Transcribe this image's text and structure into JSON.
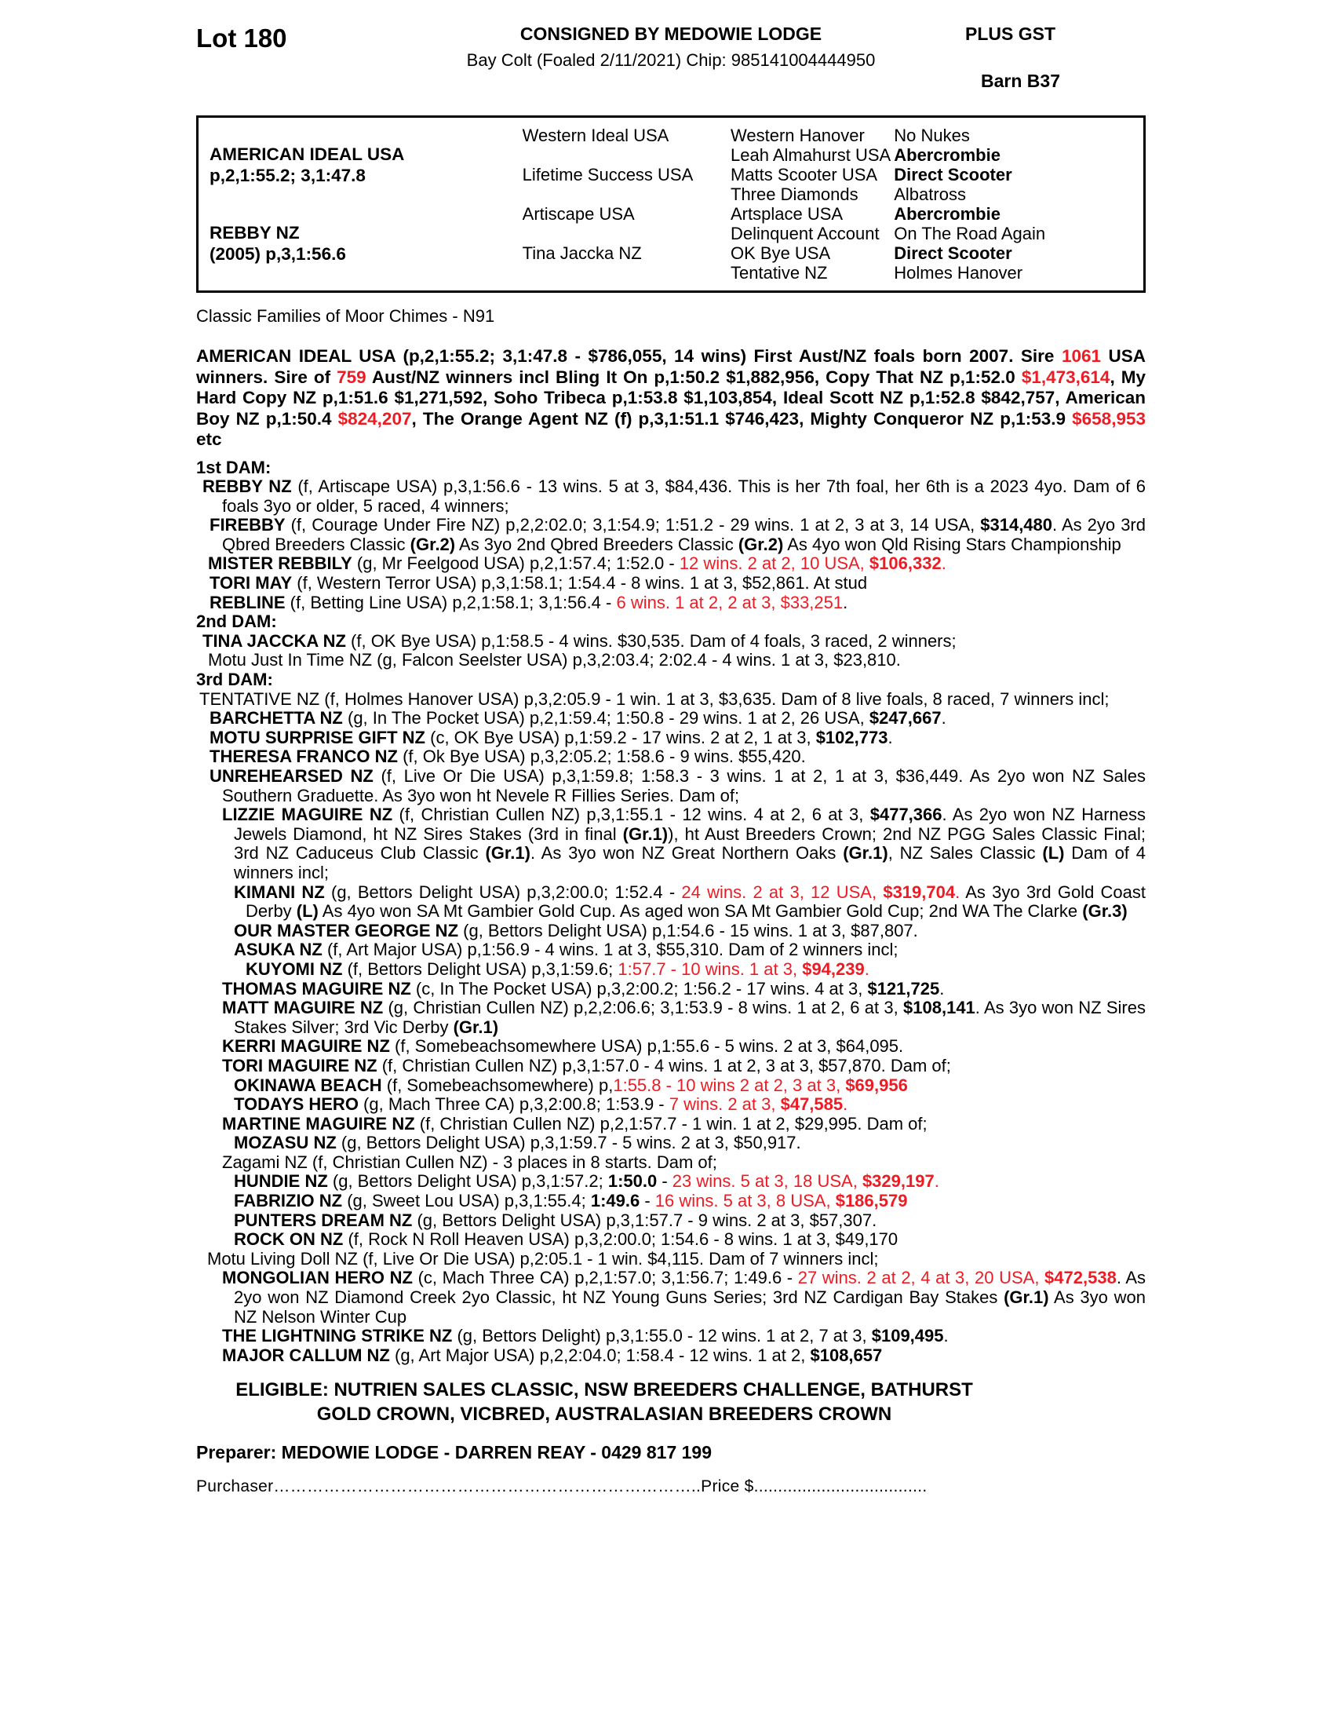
{
  "page": {
    "background": "#ffffff",
    "red_color": "#ed1c24"
  },
  "header": {
    "lot": "Lot 180",
    "consigned": "CONSIGNED BY MEDOWIE LODGE",
    "foaling": "Bay Colt (Foaled 2/11/2021) Chip: 985141004444950",
    "plus_gst": "PLUS GST",
    "barn": "Barn B37"
  },
  "pedigree": {
    "sire": {
      "name": "AMERICAN IDEAL USA",
      "record": "p,2,1:55.2; 3,1:47.8"
    },
    "dam": {
      "name": "REBBY NZ",
      "record": "(2005) p,3,1:56.6"
    },
    "g2": [
      "Western Ideal USA",
      "Lifetime Success USA",
      "Artiscape USA",
      "Tina Jaccka NZ"
    ],
    "g3": [
      {
        "name": "Western Hanover",
        "parent": "No Nukes",
        "parent_bold": false
      },
      {
        "name": "Leah Almahurst USA",
        "parent": "Abercrombie",
        "parent_bold": true
      },
      {
        "name": "Matts Scooter USA",
        "parent": "Direct Scooter",
        "parent_bold": true
      },
      {
        "name": "Three Diamonds",
        "parent": "Albatross",
        "parent_bold": false
      },
      {
        "name": "Artsplace USA",
        "parent": "Abercrombie",
        "parent_bold": true
      },
      {
        "name": "Delinquent Account",
        "parent": "On The Road Again",
        "parent_bold": false
      },
      {
        "name": "OK Bye USA",
        "parent": "Direct Scooter",
        "parent_bold": true
      },
      {
        "name": "Tentative NZ",
        "parent": "Holmes Hanover",
        "parent_bold": false
      }
    ]
  },
  "family_line": "Classic Families of Moor Chimes - N91",
  "sire_paragraph": [
    [
      "AMERICAN IDEAL USA (p,2,1:55.2; 3,1:47.8 - $786,055, 14 wins) First Aust/NZ foals born 2007. Sire ",
      "b"
    ],
    [
      "1061",
      "br"
    ],
    [
      " USA winners. Sire of ",
      "b"
    ],
    [
      "759",
      "br"
    ],
    [
      " Aust/NZ winners incl Bling It On p,1:50.2 $1,882,956, Copy That NZ p,1:52.0 ",
      "b"
    ],
    [
      "$1,473,614",
      "br"
    ],
    [
      ", My Hard Copy NZ p,1:51.6 $1,271,592, Soho Tribeca p,1:53.8 $1,103,854, Ideal Scott NZ p,1:52.8 $842,757, American Boy NZ p,1:50.4 ",
      "b"
    ],
    [
      "$824,207",
      "br"
    ],
    [
      ", The Orange Agent NZ (f) p,3,1:51.1 $746,423, Mighty Conqueror NZ p,1:53.9 ",
      "b"
    ],
    [
      "$658,953",
      "br"
    ],
    [
      " etc",
      "b"
    ]
  ],
  "entries": [
    {
      "n": 0,
      "c": 0,
      "segs": [
        [
          "1st DAM:",
          "b"
        ]
      ]
    },
    {
      "n": 8,
      "c": 33,
      "segs": [
        [
          "REBBY NZ",
          "b"
        ],
        [
          " (f, Artiscape USA) p,3,1:56.6 - 13 wins. 5 at 3, $84,436. This is her 7th foal, her 6th is a 2023 4yo. Dam of 6 foals 3yo or older, 5 raced, 4 winners;",
          ""
        ]
      ]
    },
    {
      "n": 17,
      "c": 33,
      "segs": [
        [
          "FIREBBY",
          "b"
        ],
        [
          " (f, Courage Under Fire NZ) p,2,2:02.0; 3,1:54.9; 1:51.2 - 29 wins. 1 at 2, 3 at 3, 14 USA, ",
          ""
        ],
        [
          "$314,480",
          "b"
        ],
        [
          ". As 2yo 3rd Qbred Breeders Classic ",
          ""
        ],
        [
          "(Gr.2)",
          "b"
        ],
        [
          " As 3yo 2nd Qbred Breeders Classic ",
          ""
        ],
        [
          "(Gr.2)",
          "b"
        ],
        [
          " As 4yo won Qld Rising Stars Championship",
          ""
        ]
      ]
    },
    {
      "n": 15,
      "c": 33,
      "segs": [
        [
          "MISTER REBBILY",
          "b"
        ],
        [
          " (g, Mr Feelgood USA) p,2,1:57.4; 1:52.0 - ",
          ""
        ],
        [
          "12 wins. 2 at 2, 10 USA, ",
          "r"
        ],
        [
          "$106,332",
          "br"
        ],
        [
          ".",
          "r"
        ]
      ]
    },
    {
      "n": 17,
      "c": 33,
      "segs": [
        [
          "TORI MAY",
          "b"
        ],
        [
          " (f, Western Terror USA) p,3,1:58.1; 1:54.4 - 8 wins. 1 at 3, $52,861. At stud",
          ""
        ]
      ]
    },
    {
      "n": 17,
      "c": 33,
      "segs": [
        [
          "REBLINE",
          "b"
        ],
        [
          " (f, Betting Line USA) p,2,1:58.1; 3,1:56.4 - ",
          ""
        ],
        [
          "6 wins. 1 at 2, 2 at 3, $33,251",
          "r"
        ],
        [
          ".",
          ""
        ]
      ]
    },
    {
      "n": 0,
      "c": 0,
      "segs": [
        [
          "2nd DAM:",
          "b"
        ]
      ]
    },
    {
      "n": 8,
      "c": 33,
      "segs": [
        [
          "TINA JACCKA NZ",
          "b"
        ],
        [
          " (f, OK Bye USA) p,1:58.5 - 4 wins. $30,535. Dam of 4 foals, 3 raced, 2 winners;",
          ""
        ]
      ]
    },
    {
      "n": 15,
      "c": 33,
      "segs": [
        [
          "Motu Just In Time NZ (g, Falcon Seelster USA) p,3,2:03.4; 2:02.4 - 4 wins. 1 at 3, $23,810.",
          ""
        ]
      ]
    },
    {
      "n": 0,
      "c": 0,
      "segs": [
        [
          "3rd DAM:",
          "b"
        ]
      ]
    },
    {
      "n": 4,
      "c": 33,
      "segs": [
        [
          "TENTATIVE NZ (f, Holmes Hanover USA) p,3,2:05.9 - 1 win. 1 at 3, $3,635. Dam of 8 live foals, 8 raced, 7 winners incl;",
          ""
        ]
      ]
    },
    {
      "n": 17,
      "c": 33,
      "segs": [
        [
          "BARCHETTA NZ",
          "b"
        ],
        [
          " (g, In The Pocket USA) p,2,1:59.4; 1:50.8 - 29 wins. 1 at 2, 26 USA, ",
          ""
        ],
        [
          "$247,667",
          "b"
        ],
        [
          ".",
          ""
        ]
      ]
    },
    {
      "n": 17,
      "c": 33,
      "segs": [
        [
          "MOTU SURPRISE GIFT NZ",
          "b"
        ],
        [
          " (c, OK Bye USA) p,1:59.2 - 17 wins. 2 at 2, 1 at 3, ",
          ""
        ],
        [
          "$102,773",
          "b"
        ],
        [
          ".",
          ""
        ]
      ]
    },
    {
      "n": 17,
      "c": 33,
      "segs": [
        [
          "THERESA FRANCO NZ",
          "b"
        ],
        [
          " (f, Ok Bye USA) p,3,2:05.2; 1:58.6 - 9 wins. $55,420.",
          ""
        ]
      ]
    },
    {
      "n": 17,
      "c": 33,
      "segs": [
        [
          "UNREHEARSED NZ",
          "b"
        ],
        [
          " (f, Live Or Die USA) p,3,1:59.8; 1:58.3 - 3 wins. 1 at 2, 1 at 3, $36,449. As 2yo won NZ Sales Southern Graduette. As 3yo won ht Nevele R Fillies Series. Dam of;",
          ""
        ]
      ]
    },
    {
      "n": 33,
      "c": 48,
      "segs": [
        [
          "LIZZIE MAGUIRE NZ",
          "b"
        ],
        [
          " (f, Christian Cullen NZ) p,3,1:55.1 - 12 wins. 4 at 2, 6 at 3, ",
          ""
        ],
        [
          "$477,366",
          "b"
        ],
        [
          ". As 2yo won NZ Harness Jewels Diamond, ht NZ Sires Stakes (3rd in final ",
          ""
        ],
        [
          "(Gr.1)",
          "b"
        ],
        [
          "), ht Aust Breeders Crown; 2nd NZ PGG Sales Classic Final; 3rd NZ Caduceus Club Classic ",
          ""
        ],
        [
          "(Gr.1)",
          "b"
        ],
        [
          ". As 3yo won NZ Great Northern Oaks ",
          ""
        ],
        [
          "(Gr.1)",
          "b"
        ],
        [
          ", NZ Sales Classic ",
          ""
        ],
        [
          "(L)",
          "b"
        ],
        [
          " Dam of 4 winners incl;",
          ""
        ]
      ]
    },
    {
      "n": 48,
      "c": 63,
      "segs": [
        [
          "KIMANI NZ",
          "b"
        ],
        [
          " (g, Bettors Delight USA) p,3,2:00.0; 1:52.4 - ",
          ""
        ],
        [
          "24 wins. 2 at 3, 12 USA, ",
          "r"
        ],
        [
          "$319,704",
          "br"
        ],
        [
          ".",
          "r"
        ],
        [
          " As 3yo 3rd Gold Coast Derby ",
          ""
        ],
        [
          "(L)",
          "b"
        ],
        [
          " As 4yo won SA Mt Gambier Gold Cup. As aged won SA Mt Gambier Gold Cup; 2nd WA The Clarke ",
          ""
        ],
        [
          "(Gr.3)",
          "b"
        ]
      ]
    },
    {
      "n": 48,
      "c": 63,
      "segs": [
        [
          "OUR MASTER GEORGE NZ",
          "b"
        ],
        [
          " (g, Bettors Delight USA) p,1:54.6 - 15 wins. 1 at 3, $87,807.",
          ""
        ]
      ]
    },
    {
      "n": 48,
      "c": 63,
      "segs": [
        [
          "ASUKA NZ",
          "b"
        ],
        [
          " (f, Art Major USA) p,1:56.9 - 4 wins. 1 at 3, $55,310. Dam of 2 winners incl;",
          ""
        ]
      ]
    },
    {
      "n": 63,
      "c": 75,
      "segs": [
        [
          "KUYOMI NZ",
          "b"
        ],
        [
          " (f, Bettors Delight USA) p,3,1:59.6; ",
          ""
        ],
        [
          "1:57.7 - 10 wins. 1 at 3, ",
          "r"
        ],
        [
          "$94,239",
          "br"
        ],
        [
          ".",
          "r"
        ]
      ]
    },
    {
      "n": 33,
      "c": 48,
      "segs": [
        [
          "THOMAS MAGUIRE NZ",
          "b"
        ],
        [
          " (c, In The Pocket USA) p,3,2:00.2; 1:56.2 - 17 wins. 4 at 3, ",
          ""
        ],
        [
          "$121,725",
          "b"
        ],
        [
          ".",
          ""
        ]
      ]
    },
    {
      "n": 33,
      "c": 48,
      "segs": [
        [
          "MATT MAGUIRE NZ",
          "b"
        ],
        [
          " (g, Christian Cullen NZ) p,2,2:06.6; 3,1:53.9 - 8 wins. 1 at 2, 6 at 3, ",
          ""
        ],
        [
          "$108,141",
          "b"
        ],
        [
          ". As 3yo won NZ Sires Stakes Silver; 3rd Vic Derby ",
          ""
        ],
        [
          "(Gr.1)",
          "b"
        ]
      ]
    },
    {
      "n": 33,
      "c": 48,
      "segs": [
        [
          "KERRI MAGUIRE NZ",
          "b"
        ],
        [
          " (f, Somebeachsomewhere USA) p,1:55.6 - 5 wins. 2 at 3, $64,095.",
          ""
        ]
      ]
    },
    {
      "n": 33,
      "c": 48,
      "segs": [
        [
          "TORI MAGUIRE NZ",
          "b"
        ],
        [
          " (f, Christian Cullen NZ) p,3,1:57.0 - 4 wins. 1 at 2, 3 at 3, $57,870. Dam of;",
          ""
        ]
      ]
    },
    {
      "n": 48,
      "c": 63,
      "segs": [
        [
          "OKINAWA BEACH",
          "b"
        ],
        [
          " (f, Somebeachsomewhere) p,",
          ""
        ],
        [
          "1:55.8 - 10 wins 2 at 2, 3 at 3, ",
          "r"
        ],
        [
          "$69,956",
          "br"
        ]
      ]
    },
    {
      "n": 48,
      "c": 63,
      "segs": [
        [
          "TODAYS HERO",
          "b"
        ],
        [
          " (g, Mach Three CA) p,3,2:00.8; 1:53.9 - ",
          ""
        ],
        [
          "7 wins. 2 at 3, ",
          "r"
        ],
        [
          "$47,585",
          "br"
        ],
        [
          ".",
          "r"
        ]
      ]
    },
    {
      "n": 33,
      "c": 48,
      "segs": [
        [
          "MARTINE MAGUIRE NZ",
          "b"
        ],
        [
          " (f, Christian Cullen NZ) p,2,1:57.7 - 1 win. 1 at 2, $29,995. Dam of;",
          ""
        ]
      ]
    },
    {
      "n": 48,
      "c": 63,
      "segs": [
        [
          "MOZASU NZ",
          "b"
        ],
        [
          " (g, Bettors Delight USA) p,3,1:59.7 - 5 wins. 2 at 3, $50,917.",
          ""
        ]
      ]
    },
    {
      "n": 33,
      "c": 48,
      "segs": [
        [
          "Zagami NZ (f, Christian Cullen NZ) - 3 places in 8 starts. Dam of;",
          ""
        ]
      ]
    },
    {
      "n": 48,
      "c": 63,
      "segs": [
        [
          "HUNDIE NZ",
          "b"
        ],
        [
          " (g, Bettors Delight USA) p,3,1:57.2; ",
          ""
        ],
        [
          "1:50.0",
          "b"
        ],
        [
          " - ",
          ""
        ],
        [
          "23 wins. 5 at 3, 18 USA, ",
          "r"
        ],
        [
          "$329,197",
          "br"
        ],
        [
          ".",
          "r"
        ]
      ]
    },
    {
      "n": 48,
      "c": 63,
      "segs": [
        [
          "FABRIZIO NZ",
          "b"
        ],
        [
          " (g, Sweet Lou USA) p,3,1:55.4; ",
          ""
        ],
        [
          "1:49.6",
          "b"
        ],
        [
          " - ",
          ""
        ],
        [
          "16 wins. 5 at 3, 8 USA, ",
          "r"
        ],
        [
          "$186,579",
          "br"
        ]
      ]
    },
    {
      "n": 48,
      "c": 63,
      "segs": [
        [
          "PUNTERS DREAM NZ",
          "b"
        ],
        [
          " (g, Bettors Delight USA) p,3,1:57.7 - 9 wins. 2 at 3, $57,307.",
          ""
        ]
      ]
    },
    {
      "n": 48,
      "c": 63,
      "segs": [
        [
          "ROCK ON NZ",
          "b"
        ],
        [
          " (f, Rock N Roll Heaven USA) p,3,2:00.0; 1:54.6 - 8 wins. 1 at 3, $49,170",
          ""
        ]
      ]
    },
    {
      "n": 14,
      "c": 33,
      "segs": [
        [
          "Motu Living Doll NZ (f, Live Or Die USA) p,2:05.1 - 1 win. $4,115. Dam of 7 winners incl;",
          ""
        ]
      ]
    },
    {
      "n": 33,
      "c": 48,
      "segs": [
        [
          "MONGOLIAN HERO NZ",
          "b"
        ],
        [
          " (c, Mach Three CA) p,2,1:57.0; 3,1:56.7; 1:49.6 - ",
          ""
        ],
        [
          "27 wins. 2 at 2, 4 at 3, 20 USA, ",
          "r"
        ],
        [
          "$472,538",
          "br"
        ],
        [
          ". As 2yo won NZ Diamond Creek 2yo Classic, ht NZ Young Guns Series; 3rd NZ Cardigan Bay Stakes ",
          ""
        ],
        [
          "(Gr.1)",
          "b"
        ],
        [
          " As 3yo won NZ Nelson Winter Cup",
          ""
        ]
      ]
    },
    {
      "n": 33,
      "c": 48,
      "segs": [
        [
          "THE LIGHTNING STRIKE NZ",
          "b"
        ],
        [
          " (g, Bettors Delight) p,3,1:55.0 - 12 wins. 1 at 2, 7 at 3, ",
          ""
        ],
        [
          "$109,495",
          "b"
        ],
        [
          ".",
          ""
        ]
      ]
    },
    {
      "n": 33,
      "c": 48,
      "segs": [
        [
          "MAJOR CALLUM NZ",
          "b"
        ],
        [
          " (g, Art Major USA) p,2,2:04.0; 1:58.4 - 12 wins. 1 at 2, ",
          ""
        ],
        [
          "$108,657",
          "b"
        ]
      ]
    }
  ],
  "eligible": [
    "ELIGIBLE: NUTRIEN SALES CLASSIC, NSW BREEDERS CHALLENGE, BATHURST",
    "GOLD CROWN, VICBRED, AUSTRALASIAN BREEDERS CROWN"
  ],
  "preparer": "Preparer: MEDOWIE LODGE - DARREN REAY - 0429 817 199",
  "purchaser_line": "Purchaser…………………………………………………………………..Price $...................................."
}
